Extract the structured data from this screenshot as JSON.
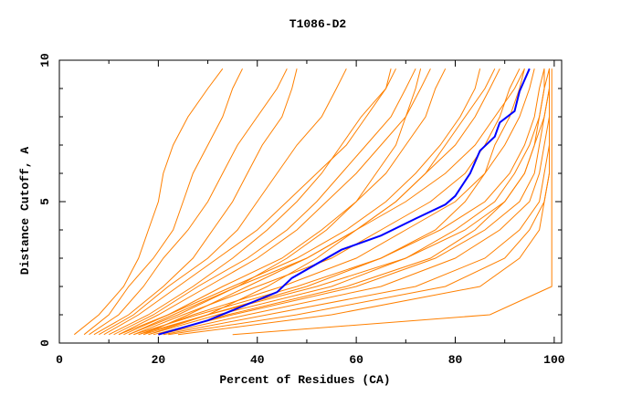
{
  "chart_data": {
    "type": "line",
    "title": "T1086-D2",
    "xlabel": "Percent of Residues (CA)",
    "ylabel": "Distance Cutoff, A",
    "xlim": [
      0,
      101.5
    ],
    "ylim": [
      0,
      10
    ],
    "x_ticks": [
      "0",
      "20",
      "40",
      "60",
      "80",
      "100"
    ],
    "y_ticks": [
      "0",
      "5",
      "10"
    ],
    "grid": false,
    "colors": {
      "models": "#ff8000",
      "highlight": "#0000ff"
    },
    "y_levels": [
      0.3,
      1,
      2,
      3,
      4,
      5,
      6,
      7,
      8,
      9,
      9.7
    ],
    "series": [
      {
        "x": [
          3,
          8,
          13,
          16,
          18,
          20,
          21,
          23,
          26,
          30,
          33
        ]
      },
      {
        "x": [
          5,
          10,
          14,
          19,
          23,
          25,
          27,
          30,
          33,
          35,
          37
        ]
      },
      {
        "x": [
          6,
          12,
          17,
          21,
          26,
          30,
          33,
          36,
          40,
          44,
          46
        ]
      },
      {
        "x": [
          7,
          14,
          21,
          27,
          31,
          35,
          38,
          41,
          45,
          47,
          48
        ]
      },
      {
        "x": [
          8,
          15,
          22,
          30,
          36,
          40,
          44,
          48,
          53,
          56,
          58
        ]
      },
      {
        "x": [
          10,
          18,
          27,
          35,
          42,
          48,
          53,
          57,
          61,
          66,
          68
        ]
      },
      {
        "x": [
          12,
          20,
          30,
          40,
          48,
          54,
          60,
          65,
          70,
          73,
          75
        ]
      },
      {
        "x": [
          13,
          22,
          33,
          45,
          53,
          60,
          66,
          70,
          74,
          76,
          78
        ]
      },
      {
        "x": [
          14,
          23,
          36,
          50,
          60,
          68,
          74,
          80,
          84,
          87,
          89
        ]
      },
      {
        "x": [
          15,
          25,
          40,
          55,
          65,
          75,
          82,
          86,
          89,
          91,
          93
        ]
      },
      {
        "x": [
          16,
          27,
          45,
          60,
          70,
          80,
          86,
          90,
          93,
          95,
          96
        ]
      },
      {
        "x": [
          17,
          30,
          50,
          65,
          77,
          86,
          91,
          94,
          96,
          97,
          98
        ]
      },
      {
        "x": [
          18,
          32,
          55,
          70,
          82,
          90,
          94,
          96,
          97,
          98,
          99
        ]
      },
      {
        "x": [
          19,
          35,
          60,
          76,
          86,
          93,
          96,
          97,
          98,
          99,
          99
        ]
      },
      {
        "x": [
          20,
          38,
          65,
          80,
          89,
          95,
          97,
          98,
          99,
          99,
          99
        ]
      },
      {
        "x": [
          21,
          42,
          72,
          86,
          93,
          97,
          98,
          99,
          99,
          99,
          99
        ]
      },
      {
        "x": [
          22,
          48,
          78,
          90,
          95,
          98,
          99,
          99,
          99,
          99,
          99
        ]
      },
      {
        "x": [
          24,
          55,
          85,
          93,
          97,
          98,
          99,
          99,
          99,
          99,
          99
        ]
      },
      {
        "x": [
          35,
          87,
          99.5,
          99.5,
          99.5,
          99.5,
          99.5,
          99.5,
          99.5,
          99.5,
          99.5
        ]
      },
      {
        "x": [
          18,
          30,
          42,
          52,
          60,
          68,
          74,
          78,
          82,
          86,
          88
        ]
      },
      {
        "x": [
          9,
          16,
          24,
          32,
          40,
          46,
          52,
          58,
          62,
          66,
          67
        ]
      },
      {
        "x": [
          11,
          19,
          28,
          38,
          46,
          52,
          57,
          62,
          67,
          70,
          72
        ]
      },
      {
        "x": [
          12,
          22,
          35,
          48,
          58,
          66,
          72,
          77,
          81,
          84,
          85
        ]
      },
      {
        "x": [
          15,
          28,
          48,
          65,
          76,
          82,
          86,
          88,
          91,
          93,
          94
        ]
      },
      {
        "x": [
          16,
          30,
          52,
          70,
          80,
          88,
          92,
          95,
          97,
          98,
          98
        ]
      },
      {
        "x": [
          20,
          34,
          58,
          75,
          84,
          90,
          94,
          96,
          98,
          99,
          99
        ]
      },
      {
        "x": [
          17,
          26,
          38,
          50,
          60,
          70,
          78,
          84,
          88,
          92,
          94
        ]
      },
      {
        "x": [
          14,
          24,
          36,
          46,
          54,
          60,
          64,
          68,
          70,
          72,
          73
        ]
      }
    ],
    "highlight_series": {
      "x": [
        20,
        30,
        44,
        47,
        57,
        65,
        72,
        78,
        80,
        83,
        85,
        88,
        89,
        92,
        93,
        95
      ],
      "y": [
        0.3,
        0.8,
        1.8,
        2.3,
        3.3,
        3.8,
        4.4,
        4.9,
        5.2,
        6.0,
        6.8,
        7.3,
        7.8,
        8.2,
        8.9,
        9.7
      ]
    }
  }
}
